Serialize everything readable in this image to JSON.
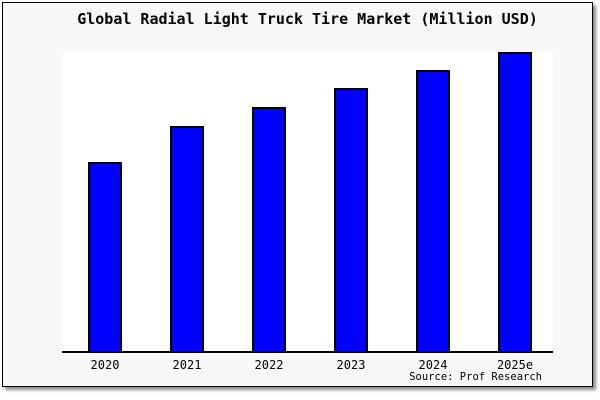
{
  "chart": {
    "title": "Global Radial Light Truck Tire Market (Million USD)",
    "source_note": "Source: Prof Research"
  },
  "chart_data": {
    "type": "bar",
    "title": "Global Radial Light Truck Tire Market (Million USD)",
    "categories": [
      "2020",
      "2021",
      "2022",
      "2023",
      "2024",
      "2025e"
    ],
    "values": [
      63.2,
      75.3,
      81.6,
      88.0,
      94.0,
      100.0
    ],
    "values_note": "relative bar heights as percent of tallest bar (2025e); chart displays no numeric value axis, gridlines or data labels",
    "xlabel": "",
    "ylabel": "",
    "legend": "none",
    "grid": false,
    "value_axis_visible": false,
    "source_note": "Source: Prof Research",
    "colors": {
      "bar_fill": "#0000ff",
      "bar_outline": "#000000",
      "plot_background": "#ffffff",
      "outer_background": "#f8f8f8",
      "frame_border": "#000000",
      "text": "#000000"
    }
  }
}
